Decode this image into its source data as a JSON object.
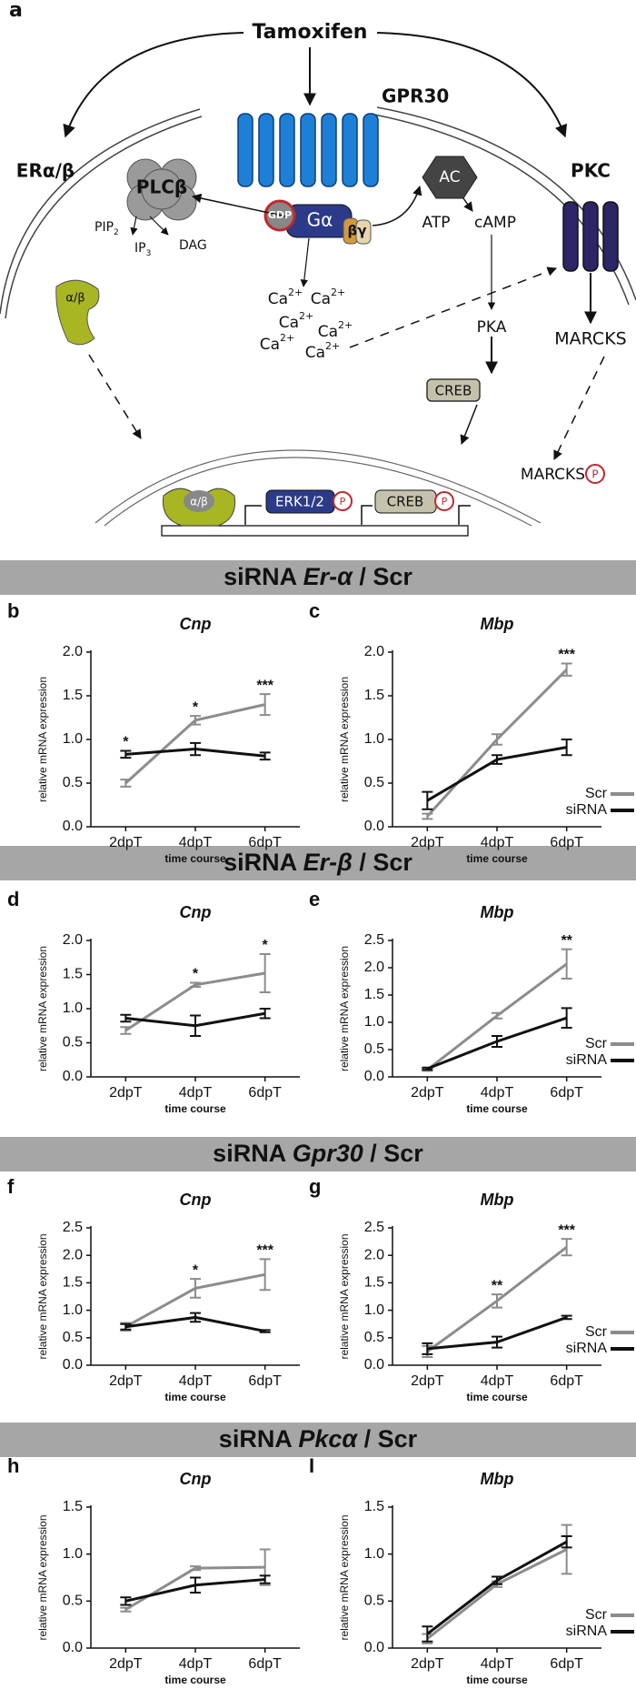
{
  "pathway": {
    "panel": "a",
    "tamoxifen": "Tamoxifen",
    "gpr30": "GPR30",
    "er": "ERα/β",
    "plc": "PLCβ",
    "pip": {
      "label": "PIP",
      "sub": "2"
    },
    "ip": {
      "label": "IP",
      "sub": "3"
    },
    "dag": "DAG",
    "gdp": "GDP",
    "galpha": "Gα",
    "bg": "βγ",
    "ac": "AC",
    "atp": "ATP",
    "camp": "cAMP",
    "pkc": "PKC",
    "calcium": [
      {
        "label": "Ca",
        "sup": "2+"
      },
      {
        "label": "Ca",
        "sup": "2+"
      },
      {
        "label": "Ca",
        "sup": "2+"
      },
      {
        "label": "Ca",
        "sup": "2+"
      },
      {
        "label": "Ca",
        "sup": "2+"
      },
      {
        "label": "Ca",
        "sup": "2+"
      }
    ],
    "alpha_beta": "α/β",
    "pka": "PKA",
    "creb": "CREB",
    "marcks": "MARCKS",
    "marcks_p": "MARCKS",
    "p1": "P",
    "nuc_alpha_beta": "α/β",
    "erk": "ERK1/2",
    "p2": "P",
    "nuc_creb": "CREB",
    "p3": "P"
  },
  "sections": [
    {
      "prefix": "siRNA",
      "gene": "Er-α",
      "suffix": "/ Scr"
    },
    {
      "prefix": "siRNA",
      "gene": "Er-β",
      "suffix": "/ Scr"
    },
    {
      "prefix": "siRNA",
      "gene": "Gpr30",
      "suffix": "/ Scr"
    },
    {
      "prefix": "siRNA",
      "gene": "Pkcα",
      "suffix": "/ Scr"
    }
  ],
  "chart_data": [
    {
      "type": "line",
      "panel": "b",
      "title": "Cnp",
      "y_label": "relative mRNA expression",
      "x_label": "time course",
      "categories": [
        "2dpT",
        "4dpT",
        "6dpT"
      ],
      "ylim": [
        0,
        2
      ],
      "yticks": [
        {
          "value": 0,
          "label": "0.0"
        },
        0.5,
        {
          "value": 1,
          "label": "1.0"
        },
        1.5,
        {
          "value": 2,
          "label": "2.0"
        }
      ],
      "series": [
        {
          "color": "#8c8c8c",
          "values": [
            0.5,
            1.22,
            1.4
          ],
          "errors": [
            0.04,
            0.05,
            0.12
          ]
        },
        {
          "color": "#111111",
          "values": [
            0.83,
            0.89,
            0.81
          ],
          "errors": [
            0.04,
            0.07,
            0.04
          ]
        }
      ],
      "annotations": [
        "*",
        "*",
        "***"
      ]
    },
    {
      "type": "line",
      "panel": "c",
      "title": "Mbp",
      "y_label": "relative mRNA expression",
      "x_label": "time course",
      "categories": [
        "2dpT",
        "4dpT",
        "6dpT"
      ],
      "ylim": [
        0,
        2
      ],
      "yticks": [
        {
          "value": 0,
          "label": "0.0"
        },
        0.5,
        {
          "value": 1,
          "label": "1.0"
        },
        1.5,
        {
          "value": 2,
          "label": "2.0"
        }
      ],
      "series": [
        {
          "name": "Scr",
          "color": "#8c8c8c",
          "values": [
            0.12,
            1.0,
            1.8
          ],
          "errors": [
            0.03,
            0.06,
            0.07
          ]
        },
        {
          "name": "siRNA",
          "color": "#111111",
          "values": [
            0.3,
            0.77,
            0.91
          ],
          "errors": [
            0.1,
            0.05,
            0.09
          ]
        }
      ],
      "annotations": [
        null,
        null,
        "***"
      ],
      "legend": "lower right"
    },
    {
      "type": "line",
      "panel": "d",
      "title": "Cnp",
      "y_label": "relative mRNA expression",
      "x_label": "time course",
      "categories": [
        "2dpT",
        "4dpT",
        "6dpT"
      ],
      "ylim": [
        0,
        2
      ],
      "yticks": [
        {
          "value": 0,
          "label": "0.0"
        },
        0.5,
        {
          "value": 1,
          "label": "1.0"
        },
        1.5,
        {
          "value": 2,
          "label": "2.0"
        }
      ],
      "series": [
        {
          "color": "#8c8c8c",
          "values": [
            0.68,
            1.35,
            1.52
          ],
          "errors": [
            0.05,
            0.03,
            0.28
          ]
        },
        {
          "color": "#111111",
          "values": [
            0.86,
            0.75,
            0.93
          ],
          "errors": [
            0.05,
            0.15,
            0.07
          ]
        }
      ],
      "annotations": [
        null,
        "*",
        "*"
      ]
    },
    {
      "type": "line",
      "panel": "e",
      "title": "Mbp",
      "y_label": "relative mRNA expression",
      "x_label": "time course",
      "categories": [
        "2dpT",
        "4dpT",
        "6dpT"
      ],
      "ylim": [
        0,
        2.5
      ],
      "yticks": [
        {
          "value": 0,
          "label": "0.0"
        },
        0.5,
        {
          "value": 1,
          "label": "1.0"
        },
        1.5,
        {
          "value": 2,
          "label": "2.0"
        },
        2.5
      ],
      "series": [
        {
          "name": "Scr",
          "color": "#8c8c8c",
          "values": [
            0.13,
            1.12,
            2.07
          ],
          "errors": [
            0.02,
            0.05,
            0.27
          ]
        },
        {
          "name": "siRNA",
          "color": "#111111",
          "values": [
            0.15,
            0.65,
            1.08
          ],
          "errors": [
            0.02,
            0.1,
            0.18
          ]
        }
      ],
      "annotations": [
        null,
        null,
        "**"
      ],
      "legend": "lower right"
    },
    {
      "type": "line",
      "panel": "f",
      "title": "Cnp",
      "y_label": "relative mRNA expression",
      "x_label": "time course",
      "categories": [
        "2dpT",
        "4dpT",
        "6dpT"
      ],
      "ylim": [
        0,
        2.5
      ],
      "yticks": [
        {
          "value": 0,
          "label": "0.0"
        },
        0.5,
        {
          "value": 1,
          "label": "1.0"
        },
        1.5,
        {
          "value": 2,
          "label": "2.0"
        },
        2.5
      ],
      "series": [
        {
          "color": "#8c8c8c",
          "values": [
            0.7,
            1.4,
            1.65
          ],
          "errors": [
            0.07,
            0.17,
            0.28
          ]
        },
        {
          "color": "#111111",
          "values": [
            0.7,
            0.87,
            0.62
          ],
          "errors": [
            0.05,
            0.08,
            0.02
          ]
        }
      ],
      "annotations": [
        null,
        "*",
        "***"
      ]
    },
    {
      "type": "line",
      "panel": "g",
      "title": "Mbp",
      "y_label": "relative mRNA expression",
      "x_label": "time course",
      "categories": [
        "2dpT",
        "4dpT",
        "6dpT"
      ],
      "ylim": [
        0,
        2.5
      ],
      "yticks": [
        {
          "value": 0,
          "label": "0.0"
        },
        0.5,
        {
          "value": 1,
          "label": "1.0"
        },
        1.5,
        {
          "value": 2,
          "label": "2.0"
        },
        2.5
      ],
      "series": [
        {
          "name": "Scr",
          "color": "#8c8c8c",
          "values": [
            0.25,
            1.17,
            2.15
          ],
          "errors": [
            0.1,
            0.12,
            0.15
          ]
        },
        {
          "name": "siRNA",
          "color": "#111111",
          "values": [
            0.3,
            0.42,
            0.87
          ],
          "errors": [
            0.1,
            0.1,
            0.03
          ]
        }
      ],
      "annotations": [
        null,
        "**",
        "***"
      ],
      "legend": "lower right"
    },
    {
      "type": "line",
      "panel": "h",
      "title": "Cnp",
      "y_label": "relative mRNA expression",
      "x_label": "time course",
      "categories": [
        "2dpT",
        "4dpT",
        "6dpT"
      ],
      "ylim": [
        0,
        1.5
      ],
      "yticks": [
        {
          "value": 0,
          "label": "0.0"
        },
        0.5,
        {
          "value": 1,
          "label": "1.0"
        },
        1.5
      ],
      "series": [
        {
          "color": "#8c8c8c",
          "values": [
            0.41,
            0.85,
            0.86
          ],
          "errors": [
            0.02,
            0.02,
            0.19
          ]
        },
        {
          "color": "#111111",
          "values": [
            0.5,
            0.67,
            0.73
          ],
          "errors": [
            0.04,
            0.08,
            0.04
          ]
        }
      ]
    },
    {
      "type": "line",
      "panel": "I",
      "title": "Mbp",
      "y_label": "relative mRNA expression",
      "x_label": "time course",
      "categories": [
        "2dpT",
        "4dpT",
        "6dpT"
      ],
      "ylim": [
        0,
        1.5
      ],
      "yticks": [
        {
          "value": 0,
          "label": "0.0"
        },
        0.5,
        {
          "value": 1,
          "label": "1.0"
        },
        1.5
      ],
      "series": [
        {
          "name": "Scr",
          "color": "#8c8c8c",
          "values": [
            0.1,
            0.68,
            1.05
          ],
          "errors": [
            0.05,
            0.03,
            0.26
          ]
        },
        {
          "name": "siRNA",
          "color": "#111111",
          "values": [
            0.15,
            0.72,
            1.13
          ],
          "errors": [
            0.08,
            0.04,
            0.06
          ]
        }
      ],
      "legend": "lower right"
    }
  ]
}
